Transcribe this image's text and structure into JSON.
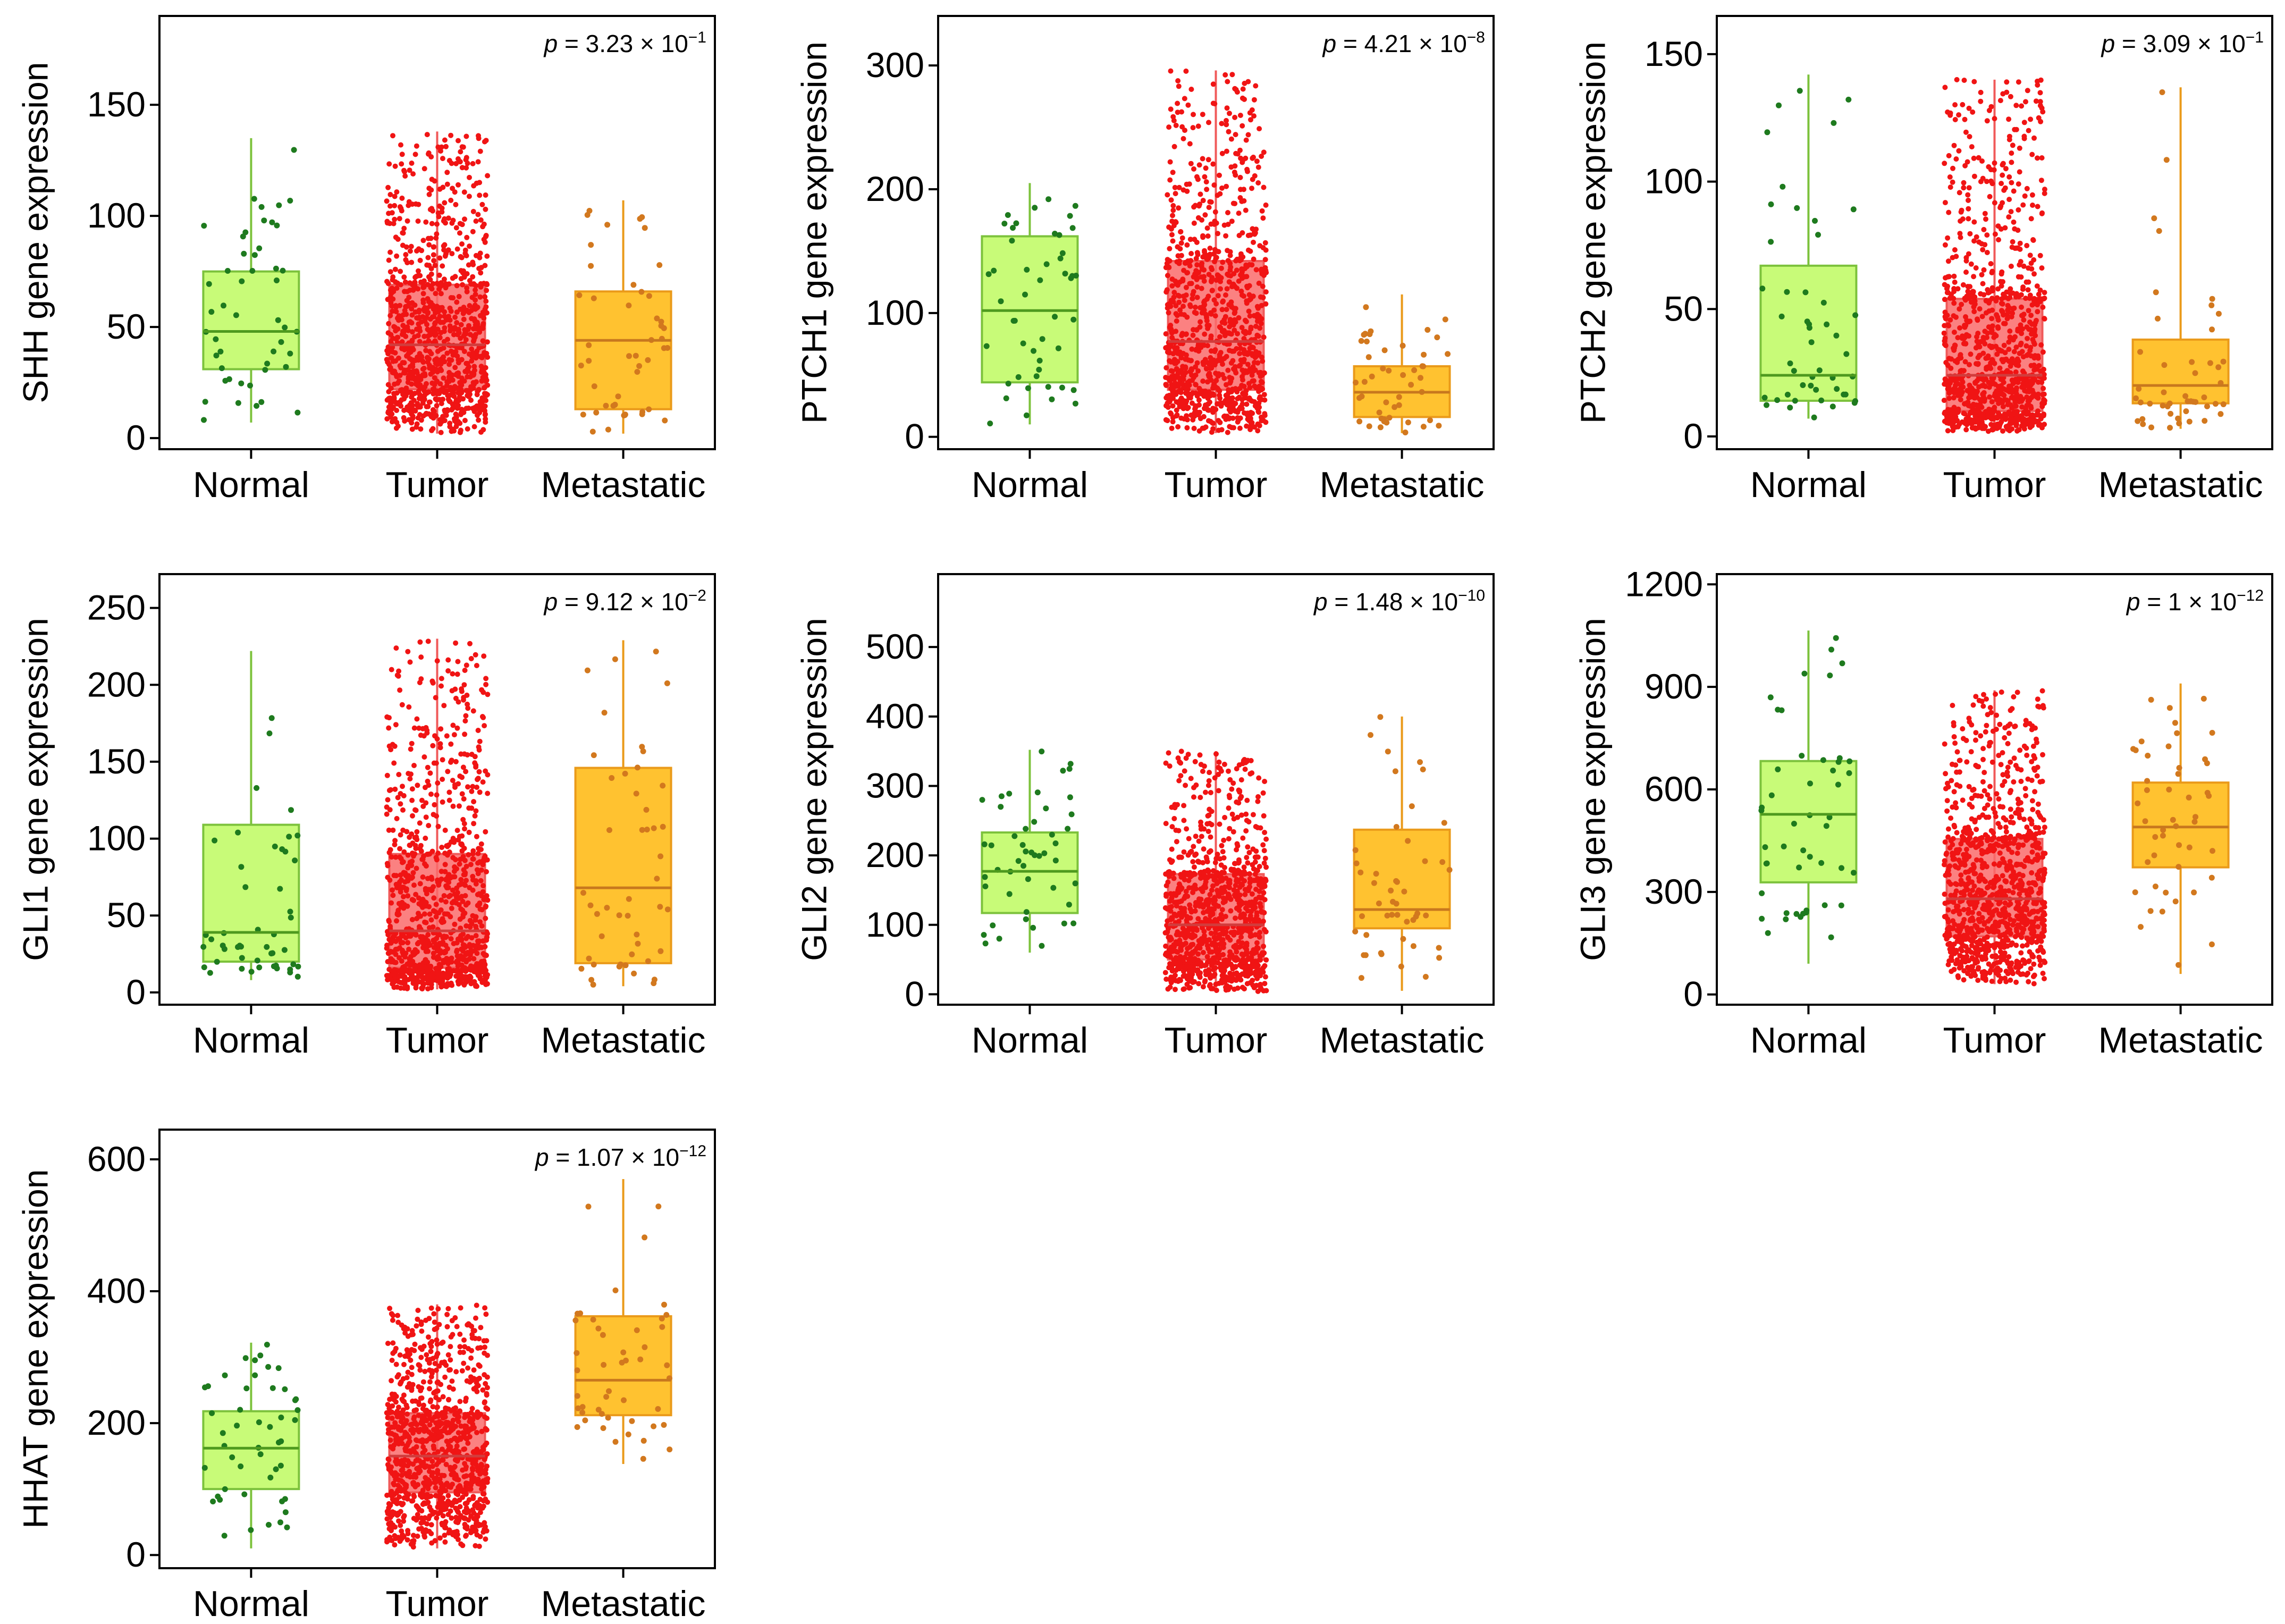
{
  "colors": {
    "Normal": {
      "fill": "#c8fb78",
      "edge": "#7cc23c",
      "median": "#4e9a1e",
      "dot": "#1e7a1e"
    },
    "Tumor": {
      "fill": "#fa6b6b",
      "edge": "#f05a5a",
      "median": "#d23c3c",
      "dot": "#f01414"
    },
    "Metastatic": {
      "fill": "#ffc230",
      "edge": "#ea9a1a",
      "median": "#c8781e",
      "dot": "#d2781e"
    }
  },
  "chart_data": [
    {
      "type": "box",
      "ylabel": "SHH gene expression",
      "categories": [
        "Normal",
        "Tumor",
        "Metastatic"
      ],
      "yticks": [
        0,
        50,
        100,
        150
      ],
      "ylim": [
        -5,
        190
      ],
      "p_value": {
        "prefix": "p",
        "text": " = 3.23 × 10",
        "exp": "−1"
      },
      "boxes": [
        {
          "category": "Normal",
          "q1": 31,
          "median": 48,
          "q3": 75,
          "whisker_low": 7,
          "whisker_high": 135,
          "n": 48
        },
        {
          "category": "Tumor",
          "q1": 22,
          "median": 42,
          "q3": 69,
          "whisker_low": 2,
          "whisker_high": 138,
          "n": 1000
        },
        {
          "category": "Metastatic",
          "q1": 13,
          "median": 44,
          "q3": 66,
          "whisker_low": 2,
          "whisker_high": 107,
          "n": 47
        }
      ]
    },
    {
      "type": "box",
      "ylabel": "PTCH1 gene expression",
      "categories": [
        "Normal",
        "Tumor",
        "Metastatic"
      ],
      "yticks": [
        0,
        100,
        200,
        300
      ],
      "ylim": [
        -10,
        340
      ],
      "p_value": {
        "prefix": "p",
        "text": " = 4.21 × 10",
        "exp": "−8"
      },
      "boxes": [
        {
          "category": "Normal",
          "q1": 44,
          "median": 102,
          "q3": 162,
          "whisker_low": 10,
          "whisker_high": 205,
          "n": 48
        },
        {
          "category": "Tumor",
          "q1": 38,
          "median": 77,
          "q3": 142,
          "whisker_low": 3,
          "whisker_high": 296,
          "n": 1000
        },
        {
          "category": "Metastatic",
          "q1": 16,
          "median": 36,
          "q3": 57,
          "whisker_low": 3,
          "whisker_high": 115,
          "n": 47
        }
      ]
    },
    {
      "type": "box",
      "ylabel": "PTCH2 gene expression",
      "categories": [
        "Normal",
        "Tumor",
        "Metastatic"
      ],
      "yticks": [
        0,
        50,
        100,
        150
      ],
      "ylim": [
        -5,
        165
      ],
      "p_value": {
        "prefix": "p",
        "text": " = 3.09 × 10",
        "exp": "−1"
      },
      "boxes": [
        {
          "category": "Normal",
          "q1": 14,
          "median": 24,
          "q3": 67,
          "whisker_low": 7,
          "whisker_high": 142,
          "n": 48
        },
        {
          "category": "Tumor",
          "q1": 10,
          "median": 24,
          "q3": 54,
          "whisker_low": 2,
          "whisker_high": 140,
          "n": 1000
        },
        {
          "category": "Metastatic",
          "q1": 13,
          "median": 20,
          "q3": 38,
          "whisker_low": 3,
          "whisker_high": 137,
          "n": 47
        }
      ]
    },
    {
      "type": "box",
      "ylabel": "GLI1 gene expression",
      "categories": [
        "Normal",
        "Tumor",
        "Metastatic"
      ],
      "yticks": [
        0,
        50,
        100,
        150,
        200,
        250
      ],
      "ylim": [
        -8,
        272
      ],
      "p_value": {
        "prefix": "p",
        "text": " = 9.12 × 10",
        "exp": "−2"
      },
      "boxes": [
        {
          "category": "Normal",
          "q1": 20,
          "median": 39,
          "q3": 109,
          "whisker_low": 8,
          "whisker_high": 222,
          "n": 48
        },
        {
          "category": "Tumor",
          "q1": 16,
          "median": 40,
          "q3": 90,
          "whisker_low": 2,
          "whisker_high": 230,
          "n": 1000
        },
        {
          "category": "Metastatic",
          "q1": 19,
          "median": 68,
          "q3": 146,
          "whisker_low": 4,
          "whisker_high": 229,
          "n": 47
        }
      ]
    },
    {
      "type": "box",
      "ylabel": "GLI2 gene expression",
      "categories": [
        "Normal",
        "Tumor",
        "Metastatic"
      ],
      "yticks": [
        0,
        100,
        200,
        300,
        400,
        500
      ],
      "ylim": [
        -15,
        605
      ],
      "p_value": {
        "prefix": "p",
        "text": " = 1.48 × 10",
        "exp": "−10"
      },
      "boxes": [
        {
          "category": "Normal",
          "q1": 117,
          "median": 177,
          "q3": 233,
          "whisker_low": 60,
          "whisker_high": 352,
          "n": 48
        },
        {
          "category": "Tumor",
          "q1": 50,
          "median": 100,
          "q3": 173,
          "whisker_low": 3,
          "whisker_high": 350,
          "n": 1000
        },
        {
          "category": "Metastatic",
          "q1": 95,
          "median": 122,
          "q3": 237,
          "whisker_low": 5,
          "whisker_high": 400,
          "n": 47
        }
      ]
    },
    {
      "type": "box",
      "ylabel": "GLI3 gene expression",
      "categories": [
        "Normal",
        "Tumor",
        "Metastatic"
      ],
      "yticks": [
        0,
        300,
        600,
        900,
        1200
      ],
      "ylim": [
        -30,
        1230
      ],
      "p_value": {
        "prefix": "p",
        "text": " = 1 × 10",
        "exp": "−12"
      },
      "boxes": [
        {
          "category": "Normal",
          "q1": 328,
          "median": 527,
          "q3": 683,
          "whisker_low": 90,
          "whisker_high": 1065,
          "n": 48
        },
        {
          "category": "Tumor",
          "q1": 170,
          "median": 280,
          "q3": 455,
          "whisker_low": 30,
          "whisker_high": 890,
          "n": 1000
        },
        {
          "category": "Metastatic",
          "q1": 372,
          "median": 490,
          "q3": 620,
          "whisker_low": 60,
          "whisker_high": 910,
          "n": 47
        }
      ]
    },
    {
      "type": "box",
      "ylabel": "HHAT gene expression",
      "categories": [
        "Normal",
        "Tumor",
        "Metastatic"
      ],
      "yticks": [
        0,
        200,
        400,
        600
      ],
      "ylim": [
        -20,
        645
      ],
      "p_value": {
        "prefix": "p",
        "text": " = 1.07 × 10",
        "exp": "−12"
      },
      "boxes": [
        {
          "category": "Normal",
          "q1": 100,
          "median": 162,
          "q3": 218,
          "whisker_low": 10,
          "whisker_high": 322,
          "n": 48
        },
        {
          "category": "Tumor",
          "q1": 95,
          "median": 150,
          "q3": 215,
          "whisker_low": 10,
          "whisker_high": 380,
          "n": 1000
        },
        {
          "category": "Metastatic",
          "q1": 212,
          "median": 265,
          "q3": 362,
          "whisker_low": 138,
          "whisker_high": 570,
          "n": 47
        }
      ]
    }
  ]
}
